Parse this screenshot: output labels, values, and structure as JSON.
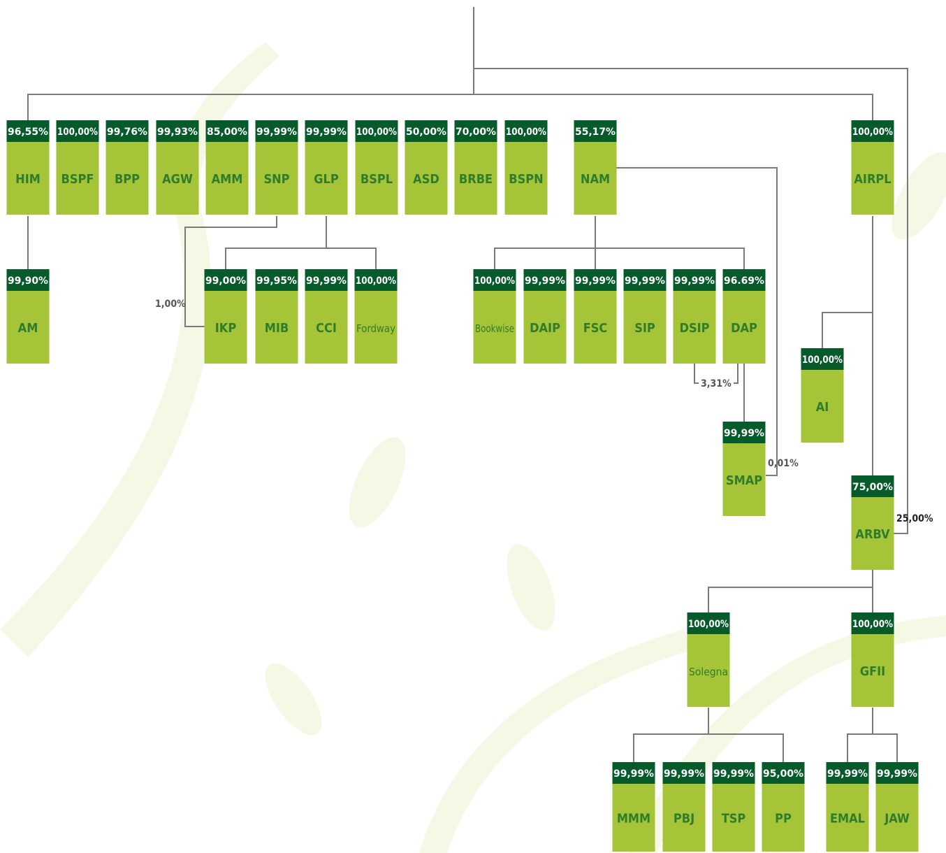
{
  "nodes": [
    {
      "label": "HIM",
      "share": "96,55%"
    },
    {
      "label": "BSPF",
      "share": "100,00%"
    },
    {
      "label": "BPP",
      "share": "99,76%"
    },
    {
      "label": "AGW",
      "share": "99,93%"
    },
    {
      "label": "AMM",
      "share": "85,00%"
    },
    {
      "label": "SNP",
      "share": "99,99%"
    },
    {
      "label": "GLP",
      "share": "99,99%"
    },
    {
      "label": "BSPL",
      "share": "100,00%"
    },
    {
      "label": "ASD",
      "share": "50,00%"
    },
    {
      "label": "BRBE",
      "share": "70,00%"
    },
    {
      "label": "BSPN",
      "share": "100,00%"
    },
    {
      "label": "NAM",
      "share": "55,17%"
    },
    {
      "label": "AIRPL",
      "share": "100,00%"
    },
    {
      "label": "AM",
      "share": "99,90%"
    },
    {
      "label": "IKP",
      "share": "99,00%"
    },
    {
      "label": "MIB",
      "share": "99,95%"
    },
    {
      "label": "CCI",
      "share": "99,99%"
    },
    {
      "label": "Fordway",
      "share": "100,00%"
    },
    {
      "label": "Bookwise",
      "share": "100,00%"
    },
    {
      "label": "DAIP",
      "share": "99,99%"
    },
    {
      "label": "FSC",
      "share": "99,99%"
    },
    {
      "label": "SIP",
      "share": "99,99%"
    },
    {
      "label": "DSIP",
      "share": "99,99%"
    },
    {
      "label": "DAP",
      "share": "96.69%"
    },
    {
      "label": "AI",
      "share": "100,00%"
    },
    {
      "label": "SMAP",
      "share": "99,99%"
    },
    {
      "label": "ARBV",
      "share": "75,00%"
    },
    {
      "label": "Solegna",
      "share": "100,00%"
    },
    {
      "label": "GFII",
      "share": "100,00%"
    },
    {
      "label": "MMM",
      "share": "99,99%"
    },
    {
      "label": "PBJ",
      "share": "99,99%"
    },
    {
      "label": "TSP",
      "share": "99,99%"
    },
    {
      "label": "PP",
      "share": "95,00%"
    },
    {
      "label": "EMAL",
      "share": "99,99%"
    },
    {
      "label": "JAW",
      "share": "99,99%"
    }
  ],
  "edge_labels": [
    "1,00%",
    "3,31%",
    "0,01%",
    "25,00%"
  ]
}
